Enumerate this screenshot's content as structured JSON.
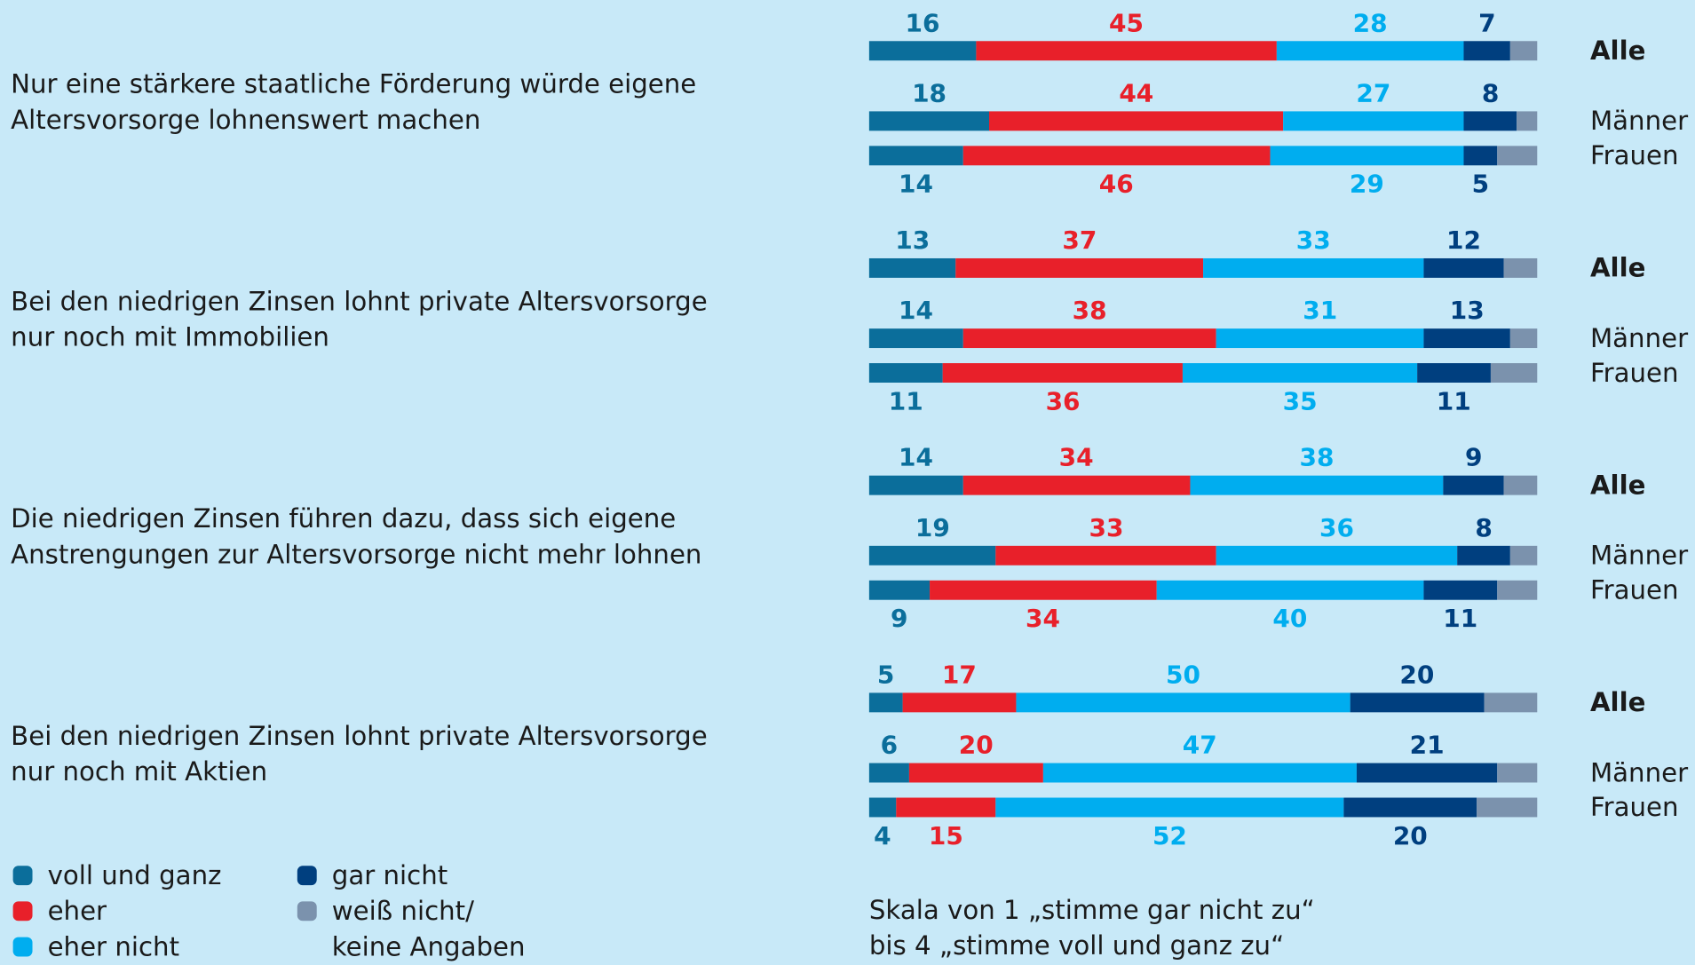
{
  "chart_data": {
    "type": "bar",
    "orientation": "horizontal",
    "stacked": true,
    "groups": [
      "Nur eine stärkere staatliche Förderung würde eigene Altersvorsorge lohnenswert machen",
      "Bei den niedrigen Zinsen lohnt private Altersvorsorge nur noch mit Immobilien",
      "Die niedrigen Zinsen führen dazu, dass sich eigene Anstrengungen zur Altersvorsorge nicht mehr lohnen",
      "Bei den niedrigen Zinsen lohnt private Altersvorsorge nur noch mit Aktien"
    ],
    "categories": [
      "Alle",
      "Männer",
      "Frauen",
      "Alle",
      "Männer",
      "Frauen",
      "Alle",
      "Männer",
      "Frauen",
      "Alle",
      "Männer",
      "Frauen"
    ],
    "series": [
      {
        "name": "voll und ganz",
        "color": "#0b6e9b",
        "values": [
          16,
          18,
          14,
          13,
          14,
          11,
          14,
          19,
          9,
          5,
          6,
          4
        ]
      },
      {
        "name": "eher",
        "color": "#e8202a",
        "values": [
          45,
          44,
          46,
          37,
          38,
          36,
          34,
          33,
          34,
          17,
          20,
          15
        ]
      },
      {
        "name": "eher nicht",
        "color": "#00adef",
        "values": [
          28,
          27,
          29,
          33,
          31,
          35,
          38,
          36,
          40,
          50,
          47,
          52
        ]
      },
      {
        "name": "gar nicht",
        "color": "#003f7f",
        "values": [
          7,
          8,
          5,
          12,
          13,
          11,
          9,
          8,
          11,
          20,
          21,
          20
        ]
      },
      {
        "name": "weiß nicht/ keine Angaben",
        "color": "#7b92ad",
        "values": [
          4,
          3,
          6,
          5,
          4,
          7,
          5,
          4,
          6,
          8,
          6,
          9
        ],
        "labeled": false
      }
    ],
    "xlim": [
      0,
      100
    ],
    "note": "Skala von 1 „stimme gar nicht zu“ bis 4 „stimme voll und ganz zu“"
  }
}
